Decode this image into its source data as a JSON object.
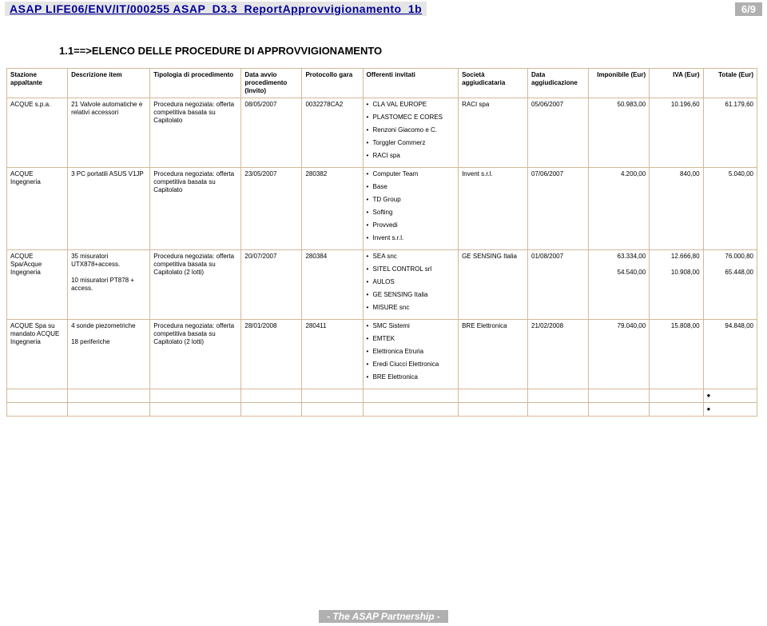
{
  "header": {
    "title": "ASAP LIFE06/ENV/IT/000255 ASAP_D3.3_ReportApprovvigionamento_1b",
    "page": "6/9"
  },
  "section_title": "1.1==>ELENCO DELLE PROCEDURE DI APPROVVIGIONAMENTO",
  "columns": [
    "Stazione appaltante",
    "Descrizione item",
    "Tipologia di procedimento",
    "Data avvio procedimento (Invito)",
    "Protocollo gara",
    "Offerenti invitati",
    "Società aggiudicataria",
    "Data aggiudicazione",
    "Imponibile (Eur)",
    "IVA (Eur)",
    "Totale (Eur)"
  ],
  "rows": [
    {
      "stazione": "ACQUE s.p.a.",
      "descrizione": "21 Valvole automatiche e relativi accessori",
      "tipologia": "Procedura negoziata: offerta competitiva basata su Capitolato",
      "data_avvio": "08/05/2007",
      "protocollo": "0032278CA2",
      "offerenti": [
        "CLA VAL EUROPE",
        "PLASTOMEC E CORES",
        "Renzoni Giacomo e C.",
        "Torggler Commerz",
        "RACI spa"
      ],
      "societa": "RACI spa",
      "data_agg": "05/06/2007",
      "imponibile": "50.983,00",
      "iva": "10.196,60",
      "totale": "61.179,60"
    },
    {
      "stazione": "ACQUE Ingegneria",
      "descrizione": "3 PC portatili ASUS V1JP",
      "tipologia": "Procedura negoziata: offerta competitiva basata su Capitolato",
      "data_avvio": "23/05/2007",
      "protocollo": "280382",
      "offerenti": [
        "Computer Team",
        "Base",
        "TD Group",
        "Softing",
        "Provvedi",
        "Invent s.r.l."
      ],
      "societa": "Invent s.r.l.",
      "data_agg": "07/06/2007",
      "imponibile": "4.200,00",
      "iva": "840,00",
      "totale": "5.040,00"
    },
    {
      "stazione": "ACQUE Spa/Acque Ingegneria",
      "descrizione": "35 misuratori UTX878+access.\n\n10 misuratori PT878 + access.",
      "tipologia": "Procedura negoziata: offerta competitiva basata su Capitolato (2 lotti)",
      "data_avvio": "20/07/2007",
      "protocollo": "280384",
      "offerenti": [
        "SEA snc",
        "SITEL CONTROL srl",
        "AULOS",
        "GE SENSING Italia",
        "MISURE snc"
      ],
      "societa": "GE SENSING Italia",
      "data_agg": "01/08/2007",
      "imponibile": "63.334,00\n\n54.540,00",
      "iva": "12.666,80\n\n10.908,00",
      "totale": "76.000,80\n\n65.448,00"
    },
    {
      "stazione": "ACQUE Spa su mandato ACQUE Ingegneria",
      "descrizione": "4 sonde piezometriche\n\n18 periferiche",
      "tipologia": "Procedura negoziata: offerta competitiva basata su Capitolato (2 lotti)",
      "data_avvio": "28/01/2008",
      "protocollo": "280411",
      "offerenti": [
        "SMC Sistemi",
        "EMTEK",
        "Elettronica Etruria",
        "Eredi Ciucci Elettronica",
        "BRE Elettronica"
      ],
      "societa": "BRE Elettronica",
      "data_agg": "21/02/2008",
      "imponibile": "79.040,00",
      "iva": "15.808,00",
      "totale": "94.848,00"
    }
  ],
  "footer": "- The ASAP Partnership -"
}
